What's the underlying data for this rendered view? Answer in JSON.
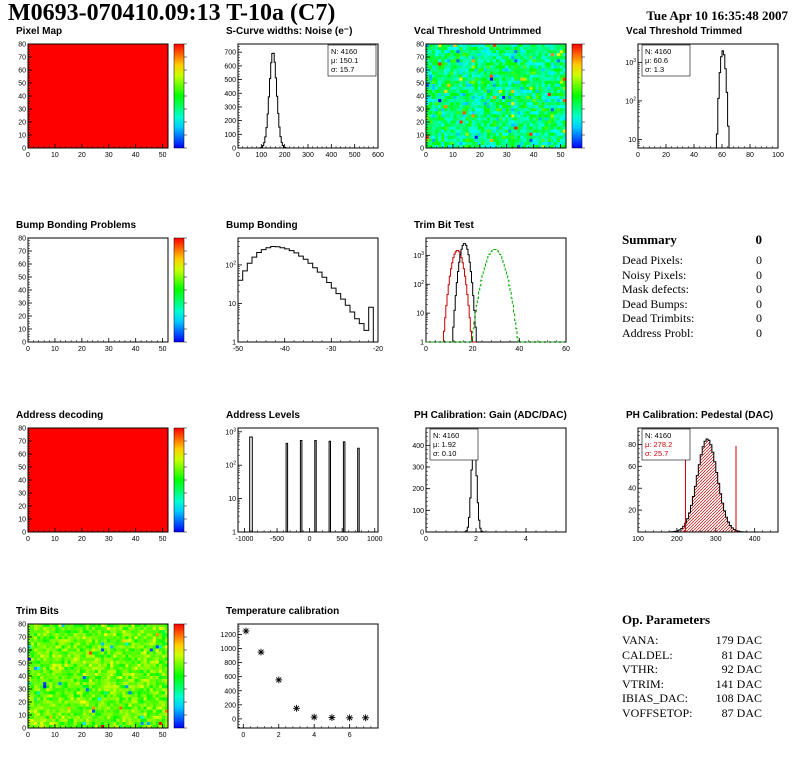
{
  "page": {
    "title": "M0693-070410.09:13 T-10a (C7)",
    "timestamp": "Tue Apr 10 16:35:48 2007"
  },
  "summary": {
    "title": "Summary",
    "value": "0",
    "rows": [
      [
        "Dead Pixels:",
        "0"
      ],
      [
        "Noisy Pixels:",
        "0"
      ],
      [
        "Mask defects:",
        "0"
      ],
      [
        "Dead Bumps:",
        "0"
      ],
      [
        "Dead Trimbits:",
        "0"
      ],
      [
        "Address Probl:",
        "0"
      ]
    ]
  },
  "op_parameters": {
    "title": "Op. Parameters",
    "rows": [
      [
        "VANA:",
        "179 DAC"
      ],
      [
        "CALDEL:",
        "81 DAC"
      ],
      [
        "VTHR:",
        "92 DAC"
      ],
      [
        "VTRIM:",
        "141 DAC"
      ],
      [
        "IBIAS_DAC:",
        "108 DAC"
      ],
      [
        "VOFFSETOP:",
        "87 DAC"
      ]
    ]
  },
  "colors": {
    "accent_red": "#cc0000",
    "line_black": "#000000",
    "green": "#00aa00"
  },
  "chart_data": [
    {
      "id": "pixel_map",
      "type": "heatmap",
      "variant": "uniform",
      "title": "Pixel Map",
      "x_range": [
        0,
        52
      ],
      "x_ticks": [
        0,
        10,
        20,
        30,
        40,
        50
      ],
      "y_range": [
        0,
        80
      ],
      "y_ticks": [
        0,
        10,
        20,
        30,
        40,
        50,
        60,
        70,
        80
      ],
      "colorbar": true
    },
    {
      "id": "scurve_noise",
      "type": "hist",
      "title": "S-Curve widths: Noise (e⁻)",
      "x_range": [
        0,
        600
      ],
      "x_ticks": [
        0,
        100,
        200,
        300,
        400,
        500,
        600
      ],
      "y_range": [
        0,
        760
      ],
      "y_ticks": [
        0,
        100,
        200,
        300,
        400,
        500,
        600,
        700
      ],
      "bins": 120,
      "gaussian": {
        "mean": 150.1,
        "sigma": 15.7,
        "amp": 700
      },
      "stats": {
        "pos": "tr",
        "lines": [
          [
            "N: 4160",
            "#000000"
          ],
          [
            "μ: 150.1",
            "#000000"
          ],
          [
            "σ: 15.7",
            "#000000"
          ]
        ]
      }
    },
    {
      "id": "vcal_untrimmed",
      "type": "heatmap",
      "variant": "noise",
      "seed": 7,
      "base": 0.38,
      "spread": 0.22,
      "outlier": 0.05,
      "title": "Vcal Threshold Untrimmed",
      "x_range": [
        0,
        52
      ],
      "x_ticks": [
        0,
        10,
        20,
        30,
        40,
        50
      ],
      "y_range": [
        0,
        80
      ],
      "y_ticks": [
        0,
        10,
        20,
        30,
        40,
        50,
        60,
        70,
        80
      ],
      "colorbar": true
    },
    {
      "id": "vcal_trimmed",
      "type": "hist",
      "log": true,
      "title": "Vcal Threshold Trimmed",
      "x_range": [
        0,
        100
      ],
      "x_ticks": [
        0,
        20,
        40,
        60,
        80,
        100
      ],
      "y_range": [
        6,
        3000
      ],
      "bins": 100,
      "gaussian": {
        "mean": 60.6,
        "sigma": 1.3,
        "amp": 2000
      },
      "stats": {
        "pos": "tl",
        "lines": [
          [
            "N: 4160",
            "#000000"
          ],
          [
            "μ: 60.6",
            "#000000"
          ],
          [
            "σ: 1.3",
            "#000000"
          ]
        ]
      }
    },
    {
      "id": "bump_problems",
      "type": "heatmap",
      "variant": "empty",
      "title": "Bump Bonding Problems",
      "x_range": [
        0,
        52
      ],
      "x_ticks": [
        0,
        10,
        20,
        30,
        40,
        50
      ],
      "y_range": [
        0,
        80
      ],
      "y_ticks": [
        0,
        10,
        20,
        30,
        40,
        50,
        60,
        70,
        80
      ],
      "colorbar": true
    },
    {
      "id": "bump_bonding",
      "type": "hist",
      "log": true,
      "title": "Bump Bonding",
      "x_range": [
        -50,
        -20
      ],
      "x_ticks": [
        -50,
        -40,
        -30,
        -20
      ],
      "y_range": [
        1,
        500
      ],
      "x_from": -50,
      "bin_width": 1,
      "values": [
        40,
        70,
        110,
        160,
        210,
        250,
        280,
        300,
        295,
        280,
        260,
        235,
        205,
        170,
        140,
        110,
        85,
        65,
        48,
        35,
        25,
        18,
        13,
        9,
        6,
        4,
        3,
        2,
        8,
        1
      ]
    },
    {
      "id": "trim_bit_test",
      "type": "hist_multi",
      "log": true,
      "title": "Trim Bit Test",
      "x_range": [
        0,
        60
      ],
      "x_ticks": [
        0,
        20,
        40,
        60
      ],
      "y_range": [
        1,
        4000
      ],
      "series": [
        {
          "color": "#cc0000",
          "bins": 120,
          "gaussian": {
            "mean": 13.5,
            "sigma": 1.6,
            "amp": 1500
          }
        },
        {
          "color": "#000000",
          "bins": 120,
          "gaussian": {
            "mean": 16.5,
            "sigma": 1.3,
            "amp": 2600
          }
        },
        {
          "color": "#00aa00",
          "dash": true,
          "bins": 120,
          "gaussian": {
            "mean": 29.5,
            "sigma": 2.6,
            "amp": 1600
          }
        }
      ]
    },
    {
      "id": "address_decoding",
      "type": "heatmap",
      "variant": "uniform",
      "title": "Address decoding",
      "x_range": [
        0,
        52
      ],
      "x_ticks": [
        0,
        10,
        20,
        30,
        40,
        50
      ],
      "y_range": [
        0,
        80
      ],
      "y_ticks": [
        0,
        10,
        20,
        30,
        40,
        50,
        60,
        70,
        80
      ],
      "colorbar": true
    },
    {
      "id": "address_levels",
      "type": "spikes",
      "log": true,
      "title": "Address Levels",
      "x_range": [
        -1100,
        1050
      ],
      "x_ticks": [
        -1000,
        -500,
        0,
        500,
        1000
      ],
      "y_range": [
        1,
        1300
      ],
      "spikes": [
        [
          -900,
          700,
          40
        ],
        [
          -350,
          450,
          22
        ],
        [
          -130,
          550,
          22
        ],
        [
          90,
          550,
          22
        ],
        [
          310,
          520,
          22
        ],
        [
          530,
          500,
          22
        ],
        [
          750,
          320,
          22
        ]
      ]
    },
    {
      "id": "ph_gain",
      "type": "hist",
      "title": "PH Calibration: Gain (ADC/DAC)",
      "x_range": [
        0,
        5.6
      ],
      "x_ticks": [
        0,
        2,
        4
      ],
      "y_range": [
        0,
        480
      ],
      "y_ticks": [
        0,
        100,
        200,
        300,
        400
      ],
      "bins": 112,
      "gaussian": {
        "mean": 1.92,
        "sigma": 0.1,
        "amp": 450
      },
      "stats": {
        "pos": "tl",
        "lines": [
          [
            "N: 4160",
            "#000000"
          ],
          [
            "μ: 1.92",
            "#000000"
          ],
          [
            "σ: 0.10",
            "#000000"
          ]
        ]
      }
    },
    {
      "id": "ph_pedestal",
      "type": "hist",
      "title": "PH Calibration: Pedestal (DAC)",
      "x_range": [
        100,
        460
      ],
      "x_ticks": [
        100,
        200,
        300,
        400
      ],
      "y_range": [
        0,
        95
      ],
      "y_ticks": [
        20,
        40,
        60,
        80
      ],
      "bins": 72,
      "gaussian": {
        "mean": 278.2,
        "sigma": 25.7,
        "amp": 85
      },
      "hatch": true,
      "vlines": [
        222,
        352
      ],
      "stats": {
        "pos": "tl",
        "lines": [
          [
            "N: 4160",
            "#000000"
          ],
          [
            "μ: 278.2",
            "#cc0000"
          ],
          [
            "σ: 25.7",
            "#cc0000"
          ]
        ]
      }
    },
    {
      "id": "trim_bits",
      "type": "heatmap",
      "variant": "noise",
      "seed": 42,
      "base": 0.6,
      "spread": 0.14,
      "outlier": 0.04,
      "title": "Trim Bits",
      "x_range": [
        0,
        52
      ],
      "x_ticks": [
        0,
        10,
        20,
        30,
        40,
        50
      ],
      "y_range": [
        0,
        80
      ],
      "y_ticks": [
        0,
        10,
        20,
        30,
        40,
        50,
        60,
        70,
        80
      ],
      "colorbar": true
    },
    {
      "id": "temperature",
      "type": "scatter",
      "title": "Temperature calibration",
      "x_range": [
        -0.3,
        7.6
      ],
      "x_ticks": [
        0,
        2,
        4,
        6
      ],
      "y_range": [
        -130,
        1350
      ],
      "y_ticks": [
        0,
        200,
        400,
        600,
        800,
        1000,
        1200
      ],
      "points": [
        [
          0.15,
          1250
        ],
        [
          1,
          950
        ],
        [
          2,
          555
        ],
        [
          3,
          150
        ],
        [
          4,
          25
        ],
        [
          5,
          18
        ],
        [
          6,
          15
        ],
        [
          6.9,
          15
        ]
      ]
    }
  ]
}
